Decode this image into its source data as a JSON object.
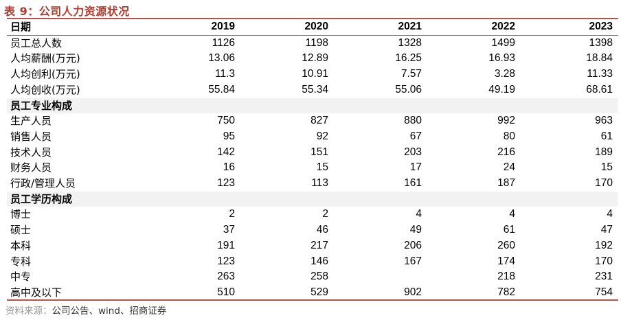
{
  "title": "表 9：公司人力资源状况",
  "columns": [
    "日期",
    "2019",
    "2020",
    "2021",
    "2022",
    "2023"
  ],
  "rows": [
    {
      "type": "data",
      "label": "员工总人数",
      "values": [
        "1126",
        "1198",
        "1328",
        "1499",
        "1398"
      ]
    },
    {
      "type": "data",
      "label": "人均薪酬(万元)",
      "values": [
        "13.06",
        "12.89",
        "16.25",
        "16.93",
        "18.84"
      ]
    },
    {
      "type": "data",
      "label": "人均创利(万元)",
      "values": [
        "11.3",
        "10.91",
        "7.57",
        "3.28",
        "11.33"
      ]
    },
    {
      "type": "data",
      "label": "人均创收(万元)",
      "values": [
        "55.84",
        "55.34",
        "55.06",
        "49.19",
        "68.61"
      ]
    },
    {
      "type": "section",
      "label": "员工专业构成",
      "values": [
        "",
        "",
        "",
        "",
        ""
      ]
    },
    {
      "type": "data",
      "label": "生产人员",
      "values": [
        "750",
        "827",
        "880",
        "992",
        "963"
      ]
    },
    {
      "type": "data",
      "label": "销售人员",
      "values": [
        "95",
        "92",
        "67",
        "80",
        "61"
      ]
    },
    {
      "type": "data",
      "label": "技术人员",
      "values": [
        "142",
        "151",
        "203",
        "216",
        "189"
      ]
    },
    {
      "type": "data",
      "label": "财务人员",
      "values": [
        "16",
        "15",
        "17",
        "24",
        "15"
      ]
    },
    {
      "type": "data",
      "label": "行政/管理人员",
      "values": [
        "123",
        "113",
        "161",
        "187",
        "170"
      ]
    },
    {
      "type": "section",
      "label": "员工学历构成",
      "values": [
        "",
        "",
        "",
        "",
        ""
      ]
    },
    {
      "type": "data",
      "label": "博士",
      "values": [
        "2",
        "2",
        "4",
        "4",
        "4"
      ]
    },
    {
      "type": "data",
      "label": "硕士",
      "values": [
        "37",
        "46",
        "49",
        "61",
        "47"
      ]
    },
    {
      "type": "data",
      "label": "本科",
      "values": [
        "191",
        "217",
        "206",
        "260",
        "192"
      ]
    },
    {
      "type": "data",
      "label": "专科",
      "values": [
        "123",
        "146",
        "167",
        "174",
        "170"
      ]
    },
    {
      "type": "data",
      "label": "中专",
      "values": [
        "263",
        "258",
        "",
        "218",
        "231"
      ]
    },
    {
      "type": "data",
      "label": "高中及以下",
      "values": [
        "510",
        "529",
        "902",
        "782",
        "754"
      ]
    }
  ],
  "source": {
    "prefix": "资料来源：",
    "text": "公司公告、wind、招商证券"
  },
  "colors": {
    "title": "#b03a2e",
    "rule": "#c0504d",
    "section_bg": "#f2f2f2"
  }
}
